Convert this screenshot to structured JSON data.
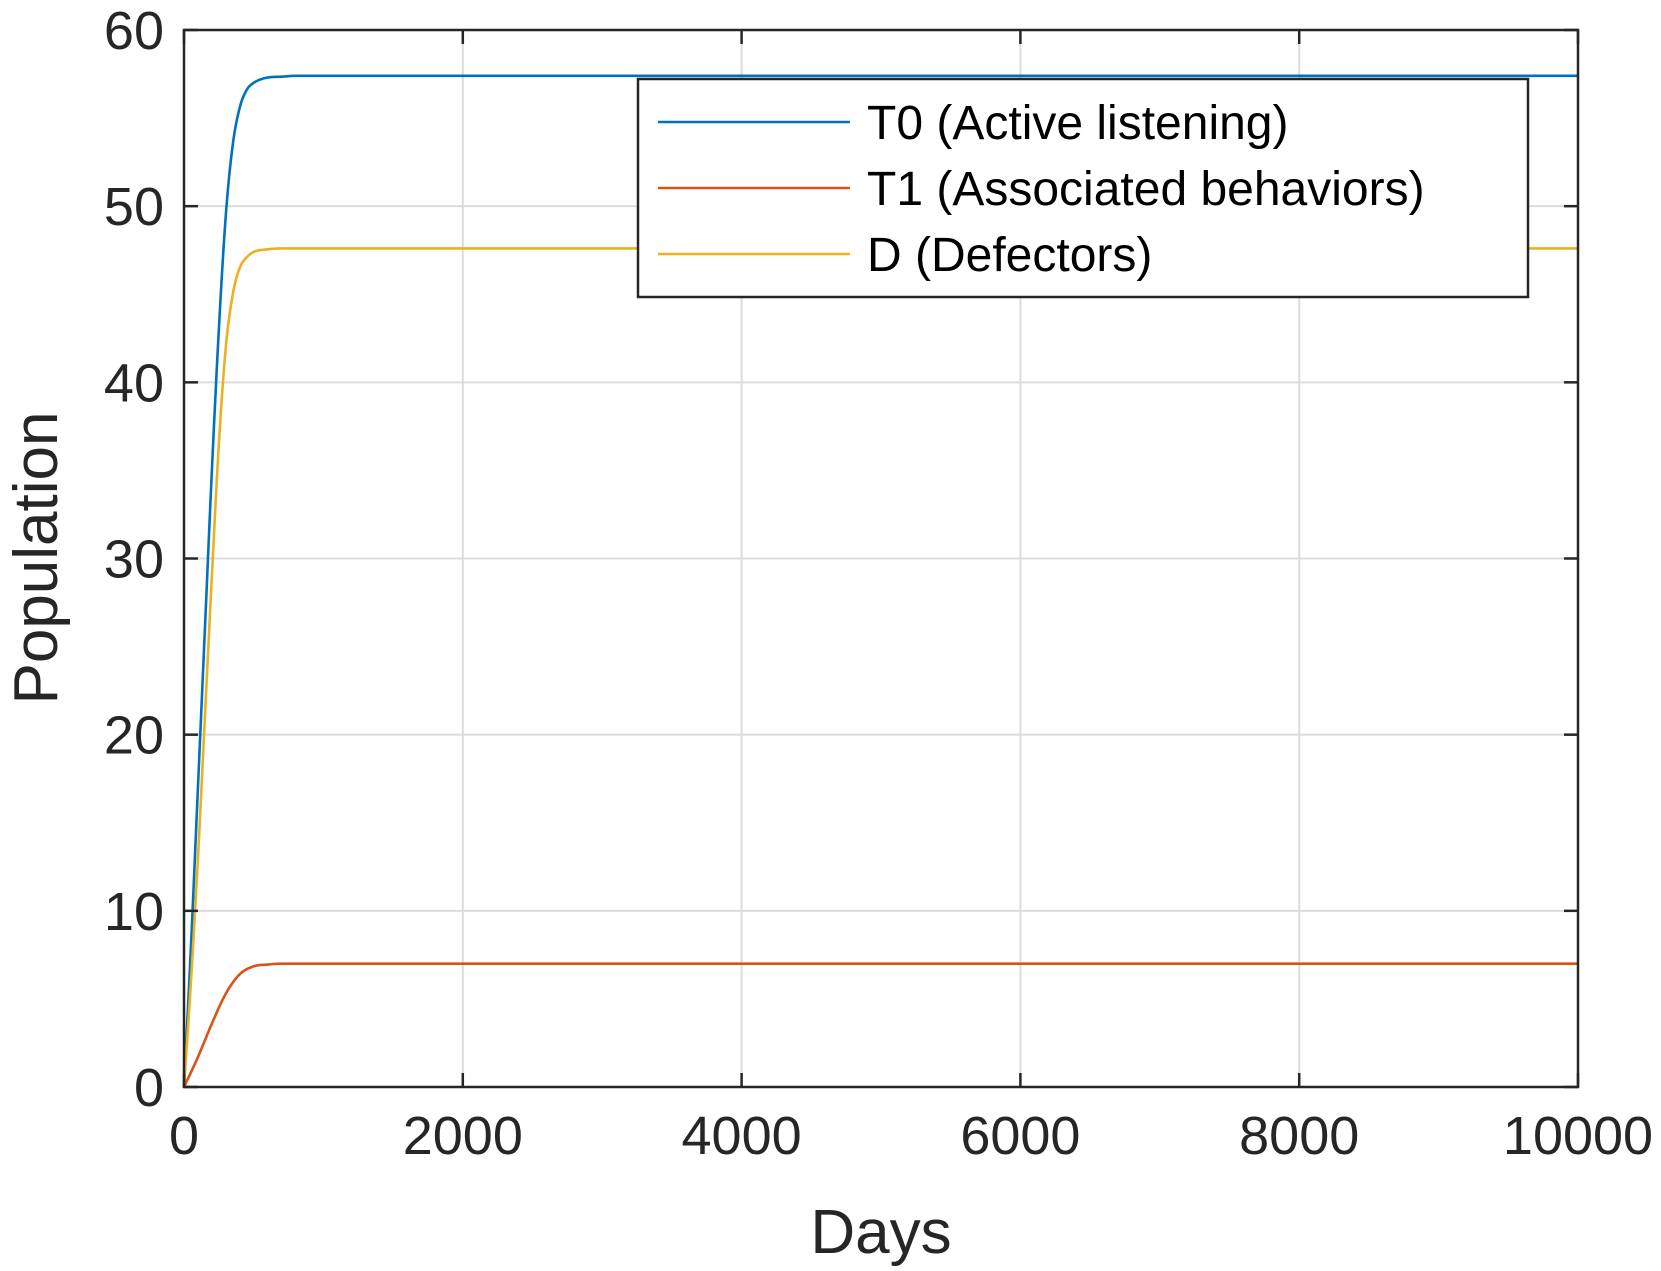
{
  "chart_data": {
    "type": "line",
    "title": "",
    "xlabel": "Days",
    "ylabel": "Population",
    "xlim": [
      0,
      10000
    ],
    "ylim": [
      0,
      60
    ],
    "xticks": [
      0,
      2000,
      4000,
      6000,
      8000,
      10000
    ],
    "xtick_labels": [
      "0",
      "2000",
      "4000",
      "6000",
      "8000",
      "10000"
    ],
    "yticks": [
      0,
      10,
      20,
      30,
      40,
      50,
      60
    ],
    "ytick_labels": [
      "0",
      "10",
      "20",
      "30",
      "40",
      "50",
      "60"
    ],
    "grid": true,
    "legend_position": "top-right",
    "series": [
      {
        "name": "T0 (Active listening)",
        "color": "#0072BD",
        "x": [
          0,
          50,
          100,
          150,
          200,
          250,
          300,
          350,
          400,
          450,
          500,
          600,
          700,
          800,
          1000,
          1500,
          2000,
          4000,
          6000,
          8000,
          10000
        ],
        "y": [
          0,
          8,
          17,
          26,
          35,
          43,
          49.5,
          53.5,
          55.6,
          56.6,
          57.0,
          57.3,
          57.35,
          57.4,
          57.4,
          57.4,
          57.4,
          57.4,
          57.4,
          57.4,
          57.4
        ]
      },
      {
        "name": "T1 (Associated behaviors)",
        "color": "#D95319",
        "x": [
          0,
          100,
          200,
          300,
          400,
          500,
          600,
          700,
          1000,
          2000,
          4000,
          6000,
          8000,
          10000
        ],
        "y": [
          0,
          1.7,
          3.6,
          5.3,
          6.4,
          6.85,
          6.95,
          7.0,
          7.0,
          7.0,
          7.0,
          7.0,
          7.0,
          7.0
        ]
      },
      {
        "name": "D (Defectors)",
        "color": "#EDB120",
        "x": [
          0,
          50,
          100,
          150,
          200,
          250,
          300,
          350,
          400,
          450,
          500,
          600,
          700,
          800,
          1000,
          2000,
          4000,
          6000,
          8000,
          10000
        ],
        "y": [
          0,
          6,
          13,
          21,
          29,
          36.5,
          42,
          45,
          46.5,
          47.1,
          47.4,
          47.55,
          47.6,
          47.6,
          47.6,
          47.6,
          47.6,
          47.6,
          47.6,
          47.6
        ]
      }
    ]
  }
}
